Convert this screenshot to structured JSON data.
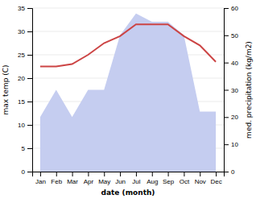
{
  "chart_data": {
    "type": "line",
    "categories": [
      "Jan",
      "Feb",
      "Mar",
      "Apr",
      "May",
      "Jun",
      "Jul",
      "Aug",
      "Sep",
      "Oct",
      "Nov",
      "Dec"
    ],
    "xlabel": "date (month)",
    "ylabel": "max temp (C)",
    "y2label": "med. precipitation (kg/m2)",
    "series": [
      {
        "type": "area",
        "axis": "y2",
        "color": "#c5cdf0",
        "values": [
          20,
          30,
          20,
          30,
          30,
          50,
          58,
          55,
          55,
          50,
          22,
          22
        ]
      },
      {
        "type": "line",
        "color": "#cc4444",
        "values": [
          22.5,
          22.5,
          23.0,
          25.0,
          27.5,
          29.0,
          31.5,
          31.5,
          31.5,
          29.0,
          27.0,
          23.5
        ]
      }
    ],
    "ylim": [
      0,
      35
    ],
    "yticks": [
      0,
      5,
      10,
      15,
      20,
      25,
      30,
      35
    ],
    "y2lim": [
      0,
      60
    ],
    "y2ticks": [
      0,
      10,
      20,
      30,
      40,
      50,
      60
    ],
    "grid": true
  }
}
